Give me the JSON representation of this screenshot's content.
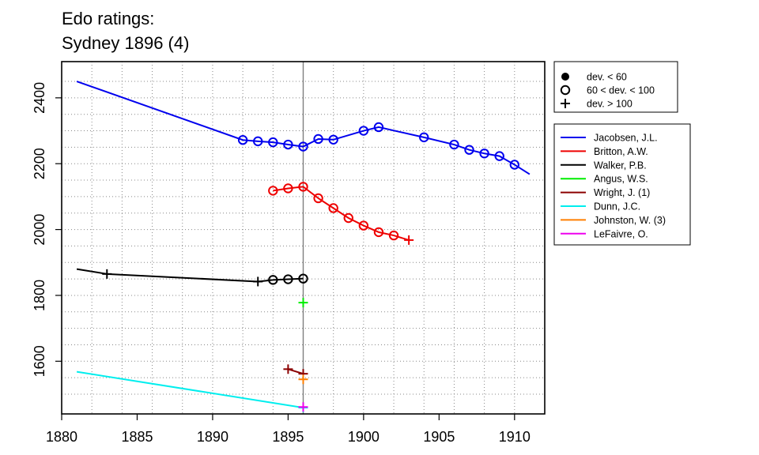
{
  "chart_data": {
    "type": "line",
    "title": [
      "Edo ratings:",
      "Sydney 1896 (4)"
    ],
    "xlim": [
      1880,
      1912
    ],
    "ylim": [
      1440,
      2510
    ],
    "x_ticks": [
      1880,
      1885,
      1890,
      1895,
      1900,
      1905,
      1910
    ],
    "y_ticks": [
      1600,
      1800,
      2000,
      2200,
      2400
    ],
    "x_minor_grid": [
      1880,
      1882,
      1884,
      1886,
      1888,
      1890,
      1892,
      1894,
      1896,
      1898,
      1900,
      1902,
      1904,
      1906,
      1908,
      1910
    ],
    "y_minor_grid": [
      1500,
      1550,
      1600,
      1650,
      1700,
      1750,
      1800,
      1850,
      1900,
      1950,
      2000,
      2050,
      2100,
      2150,
      2200,
      2250,
      2300,
      2350,
      2400,
      2450
    ],
    "grid": "dotted",
    "vline_x": 1896,
    "marker_legend": {
      "position": "top-right",
      "items": [
        {
          "marker": "filled-circle",
          "label": "dev. < 60"
        },
        {
          "marker": "open-circle",
          "label": "60 < dev. < 100"
        },
        {
          "marker": "plus",
          "label": "dev. > 100"
        }
      ]
    },
    "series_legend_position": "right",
    "series": [
      {
        "name": "Jacobsen, J.L.",
        "color": "#0000ee",
        "line": [
          [
            1881,
            2450
          ],
          [
            1892,
            2272
          ],
          [
            1893,
            2268
          ],
          [
            1894,
            2265
          ],
          [
            1895,
            2258
          ],
          [
            1896,
            2252
          ],
          [
            1897,
            2275
          ],
          [
            1898,
            2273
          ],
          [
            1900,
            2300
          ],
          [
            1901,
            2311
          ],
          [
            1904,
            2280
          ],
          [
            1906,
            2258
          ],
          [
            1907,
            2242
          ],
          [
            1908,
            2231
          ],
          [
            1909,
            2223
          ],
          [
            1910,
            2197
          ],
          [
            1911,
            2168
          ]
        ],
        "points": [
          {
            "x": 1892,
            "y": 2272,
            "m": "open"
          },
          {
            "x": 1893,
            "y": 2268,
            "m": "open"
          },
          {
            "x": 1894,
            "y": 2265,
            "m": "open"
          },
          {
            "x": 1895,
            "y": 2258,
            "m": "open"
          },
          {
            "x": 1896,
            "y": 2252,
            "m": "open"
          },
          {
            "x": 1897,
            "y": 2275,
            "m": "open"
          },
          {
            "x": 1898,
            "y": 2273,
            "m": "open"
          },
          {
            "x": 1900,
            "y": 2300,
            "m": "open"
          },
          {
            "x": 1901,
            "y": 2311,
            "m": "open"
          },
          {
            "x": 1904,
            "y": 2280,
            "m": "open"
          },
          {
            "x": 1906,
            "y": 2258,
            "m": "open"
          },
          {
            "x": 1907,
            "y": 2242,
            "m": "open"
          },
          {
            "x": 1908,
            "y": 2231,
            "m": "open"
          },
          {
            "x": 1909,
            "y": 2223,
            "m": "open"
          },
          {
            "x": 1910,
            "y": 2197,
            "m": "open"
          }
        ]
      },
      {
        "name": "Britton, A.W.",
        "color": "#ee0000",
        "line": [
          [
            1894,
            2118
          ],
          [
            1895,
            2125
          ],
          [
            1896,
            2130
          ],
          [
            1897,
            2095
          ],
          [
            1898,
            2065
          ],
          [
            1899,
            2035
          ],
          [
            1900,
            2012
          ],
          [
            1901,
            1992
          ],
          [
            1902,
            1982
          ],
          [
            1903,
            1968
          ]
        ],
        "points": [
          {
            "x": 1894,
            "y": 2118,
            "m": "open"
          },
          {
            "x": 1895,
            "y": 2125,
            "m": "open"
          },
          {
            "x": 1896,
            "y": 2130,
            "m": "open"
          },
          {
            "x": 1897,
            "y": 2095,
            "m": "open"
          },
          {
            "x": 1898,
            "y": 2065,
            "m": "open"
          },
          {
            "x": 1899,
            "y": 2035,
            "m": "open"
          },
          {
            "x": 1900,
            "y": 2012,
            "m": "open"
          },
          {
            "x": 1901,
            "y": 1992,
            "m": "open"
          },
          {
            "x": 1902,
            "y": 1982,
            "m": "open"
          },
          {
            "x": 1903,
            "y": 1968,
            "m": "plus"
          }
        ]
      },
      {
        "name": "Walker, P.B.",
        "color": "#000000",
        "line": [
          [
            1881,
            1880
          ],
          [
            1883,
            1865
          ],
          [
            1893,
            1842
          ],
          [
            1894,
            1847
          ],
          [
            1895,
            1849
          ],
          [
            1896,
            1851
          ]
        ],
        "points": [
          {
            "x": 1883,
            "y": 1865,
            "m": "plus"
          },
          {
            "x": 1893,
            "y": 1842,
            "m": "plus"
          },
          {
            "x": 1894,
            "y": 1847,
            "m": "open"
          },
          {
            "x": 1895,
            "y": 1849,
            "m": "open"
          },
          {
            "x": 1896,
            "y": 1851,
            "m": "open"
          }
        ]
      },
      {
        "name": "Angus, W.S.",
        "color": "#00ee00",
        "line": [],
        "points": [
          {
            "x": 1896,
            "y": 1778,
            "m": "plus"
          }
        ]
      },
      {
        "name": "Wright, J. (1)",
        "color": "#8b0000",
        "line": [
          [
            1895,
            1576
          ],
          [
            1896,
            1562
          ]
        ],
        "points": [
          {
            "x": 1895,
            "y": 1576,
            "m": "plus"
          },
          {
            "x": 1896,
            "y": 1562,
            "m": "plus"
          }
        ]
      },
      {
        "name": "Dunn, J.C.",
        "color": "#00eeee",
        "line": [
          [
            1881,
            1568
          ],
          [
            1896,
            1459
          ]
        ],
        "points": [
          {
            "x": 1896,
            "y": 1459,
            "m": "plus"
          }
        ]
      },
      {
        "name": "Johnston, W. (3)",
        "color": "#ff7f00",
        "line": [],
        "points": [
          {
            "x": 1896,
            "y": 1545,
            "m": "plus"
          }
        ]
      },
      {
        "name": "LeFaivre, O.",
        "color": "#ee00ee",
        "line": [],
        "points": [
          {
            "x": 1896,
            "y": 1461,
            "m": "plus"
          }
        ]
      }
    ]
  }
}
